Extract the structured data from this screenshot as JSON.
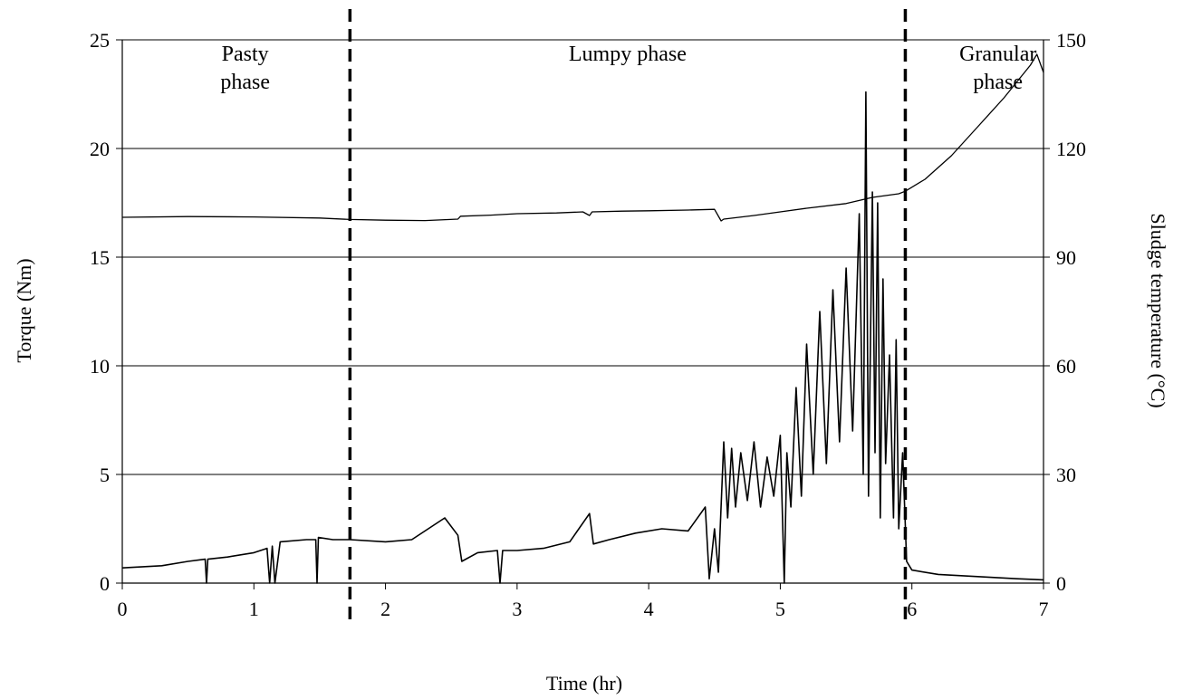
{
  "chart_data": {
    "type": "line",
    "title": "",
    "xlabel": "Time (hr)",
    "ylabel": "Torque (Nm)",
    "y2label": "Sludge temperature (°C)",
    "xlim": [
      0,
      7
    ],
    "ylim": [
      0,
      25
    ],
    "y2lim": [
      0,
      150
    ],
    "xticks": [
      "0",
      "1",
      "2",
      "3",
      "4",
      "5",
      "6",
      "7"
    ],
    "yticks": [
      "0",
      "5",
      "10",
      "15",
      "20",
      "25"
    ],
    "y2ticks": [
      "0",
      "30",
      "60",
      "90",
      "120",
      "150"
    ],
    "grid": "horizontal",
    "phase_boundaries": [
      1.73,
      5.95
    ],
    "phases": [
      {
        "label": "Pasty phase",
        "lines": [
          "Pasty",
          "phase"
        ]
      },
      {
        "label": "Lumpy phase",
        "lines": [
          "Lumpy phase"
        ]
      },
      {
        "label": "Granular phase",
        "lines": [
          "Granular",
          "phase"
        ]
      }
    ],
    "series": [
      {
        "axis": "right",
        "x": [
          0,
          0.5,
          1.0,
          1.5,
          1.73,
          2.0,
          2.3,
          2.55,
          2.57,
          2.8,
          3.0,
          3.3,
          3.5,
          3.55,
          3.57,
          3.8,
          4.0,
          4.3,
          4.5,
          4.55,
          4.57,
          4.8,
          5.0,
          5.2,
          5.5,
          5.7,
          5.9,
          5.95,
          6.1,
          6.3,
          6.5,
          6.7,
          6.9,
          6.95,
          7.0
        ],
        "values": [
          101,
          101.2,
          101.1,
          100.8,
          100.4,
          100.2,
          100.1,
          100.5,
          101.3,
          101.6,
          102.0,
          102.2,
          102.5,
          101.5,
          102.5,
          102.7,
          102.8,
          103.0,
          103.2,
          100.0,
          100.5,
          101.5,
          102.5,
          103.5,
          104.8,
          106.5,
          107.5,
          108.2,
          111.5,
          118,
          126,
          134,
          143,
          146,
          141
        ]
      },
      {
        "axis": "left",
        "x": [
          0,
          0.3,
          0.5,
          0.63,
          0.64,
          0.65,
          0.8,
          1.0,
          1.1,
          1.12,
          1.14,
          1.16,
          1.2,
          1.4,
          1.47,
          1.48,
          1.49,
          1.6,
          1.73,
          2.0,
          2.2,
          2.45,
          2.55,
          2.58,
          2.7,
          2.85,
          2.87,
          2.89,
          3.0,
          3.2,
          3.4,
          3.55,
          3.58,
          3.7,
          3.9,
          4.1,
          4.3,
          4.43,
          4.46,
          4.5,
          4.53,
          4.57,
          4.6,
          4.63,
          4.66,
          4.7,
          4.75,
          4.8,
          4.85,
          4.9,
          4.95,
          5.0,
          5.03,
          5.05,
          5.08,
          5.12,
          5.16,
          5.2,
          5.25,
          5.3,
          5.35,
          5.4,
          5.45,
          5.5,
          5.55,
          5.6,
          5.63,
          5.65,
          5.67,
          5.7,
          5.72,
          5.74,
          5.76,
          5.78,
          5.8,
          5.83,
          5.86,
          5.88,
          5.9,
          5.93,
          5.96,
          6.0,
          6.2,
          6.5,
          6.8,
          7.0
        ],
        "values": [
          0.7,
          0.8,
          1.0,
          1.1,
          0.0,
          1.1,
          1.2,
          1.4,
          1.6,
          0.0,
          1.7,
          0.0,
          1.9,
          2.0,
          2.0,
          0.0,
          2.1,
          2.0,
          2.0,
          1.9,
          2.0,
          3.0,
          2.2,
          1.0,
          1.4,
          1.5,
          0.0,
          1.5,
          1.5,
          1.6,
          1.9,
          3.2,
          1.8,
          2.0,
          2.3,
          2.5,
          2.4,
          3.5,
          0.2,
          2.5,
          0.5,
          6.5,
          3.0,
          6.2,
          3.5,
          6.0,
          3.8,
          6.5,
          3.5,
          5.8,
          4.0,
          6.8,
          0.0,
          6.0,
          3.5,
          9.0,
          4.0,
          11.0,
          5.0,
          12.5,
          5.5,
          13.5,
          6.5,
          14.5,
          7.0,
          17.0,
          5.0,
          22.6,
          4.0,
          18.0,
          6.0,
          17.5,
          3.0,
          14.0,
          5.5,
          10.5,
          3.0,
          11.2,
          2.5,
          6.0,
          1.0,
          0.6,
          0.4,
          0.3,
          0.2,
          0.15
        ]
      }
    ]
  }
}
